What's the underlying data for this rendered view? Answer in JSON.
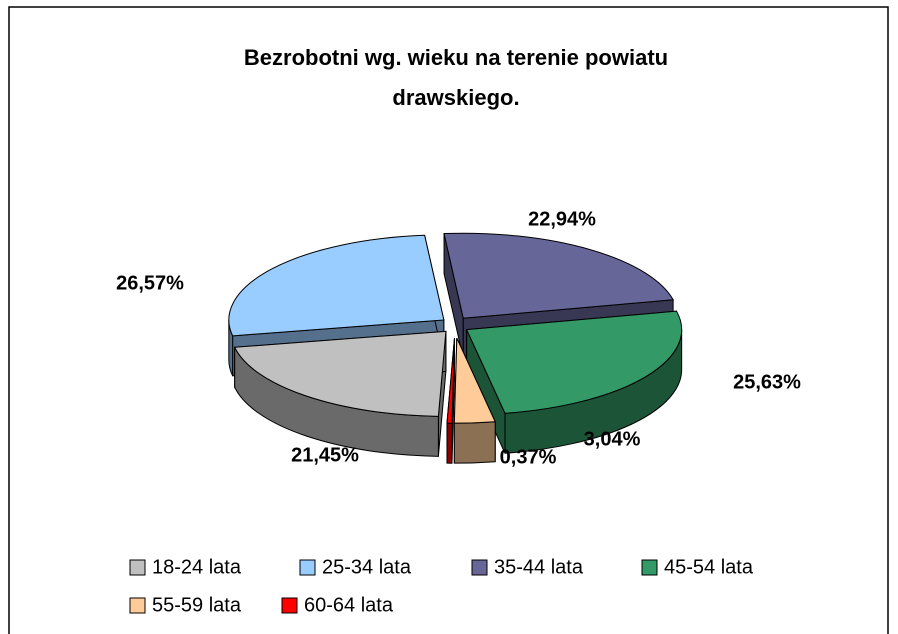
{
  "chart_data": {
    "type": "pie3d",
    "title": "Bezrobotni wg. wieku na terenie powiatu\ndrawskiego.",
    "categories": [
      "18-24 lata",
      "25-34 lata",
      "35-44 lata",
      "45-54 lata",
      "55-59 lata",
      "60-64 lata"
    ],
    "values": [
      21.45,
      26.57,
      22.94,
      25.63,
      3.04,
      0.37
    ],
    "value_labels": [
      "21,45%",
      "26,57%",
      "22,94%",
      "25,63%",
      "3,04%",
      "0,37%"
    ],
    "colors": [
      "#c0c0c0",
      "#99ccff",
      "#666699",
      "#339966",
      "#ffcc99",
      "#ff0000"
    ],
    "legend": "bottom"
  }
}
